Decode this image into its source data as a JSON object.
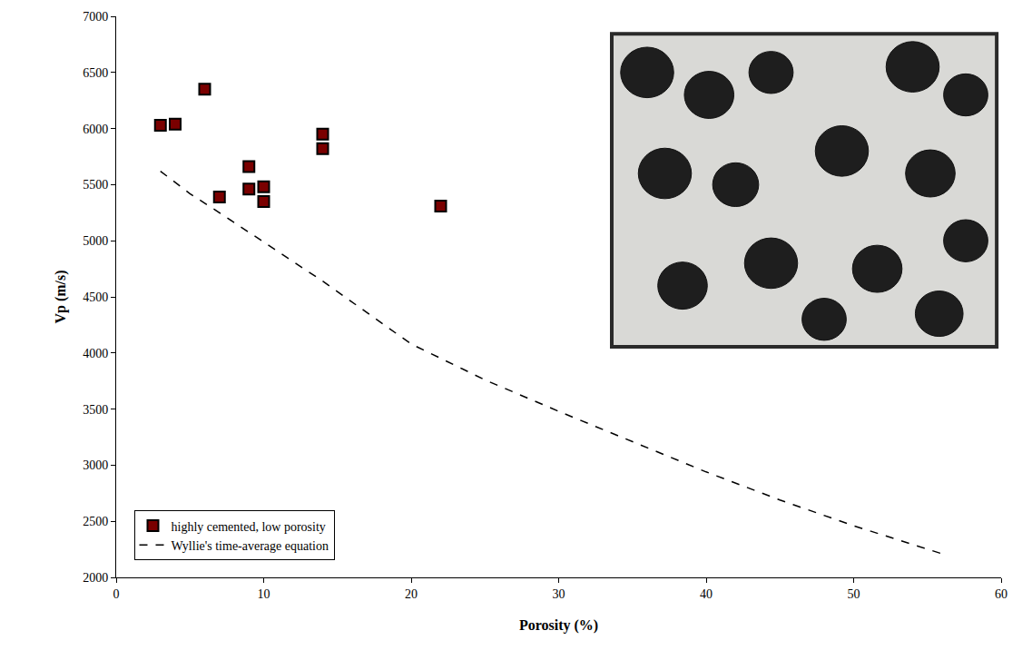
{
  "chart_data": {
    "type": "scatter",
    "x_label": "Porosity (%)",
    "y_label": "Vp (m/s)",
    "xlim": [
      0,
      60
    ],
    "xticks": [
      0,
      10,
      20,
      30,
      40,
      50,
      60
    ],
    "ylim": [
      2000,
      7000
    ],
    "yticks": [
      2000,
      2500,
      3000,
      3500,
      4000,
      4500,
      5000,
      5500,
      6000,
      6500,
      7000
    ],
    "grid": false,
    "legend": "bottom left",
    "series": [
      {
        "name": "highly cemented, low porosity",
        "type": "scatter",
        "marker": "square",
        "color": "#7a0000",
        "x": [
          3,
          4,
          6,
          7,
          9,
          9,
          10,
          10,
          14,
          14,
          22
        ],
        "values": [
          6030,
          6040,
          6350,
          5390,
          5660,
          5460,
          5480,
          5350,
          5950,
          5820,
          5310
        ]
      },
      {
        "name": "Wyllie's time-average equation",
        "type": "line",
        "line_style": "dash",
        "color": "#000000",
        "x": [
          3,
          5,
          7,
          10,
          14,
          20,
          25,
          30,
          35,
          40,
          45,
          50,
          56
        ],
        "values": [
          5620,
          5420,
          5250,
          4990,
          4640,
          4080,
          3760,
          3480,
          3210,
          2940,
          2690,
          2460,
          2210
        ]
      }
    ]
  }
}
